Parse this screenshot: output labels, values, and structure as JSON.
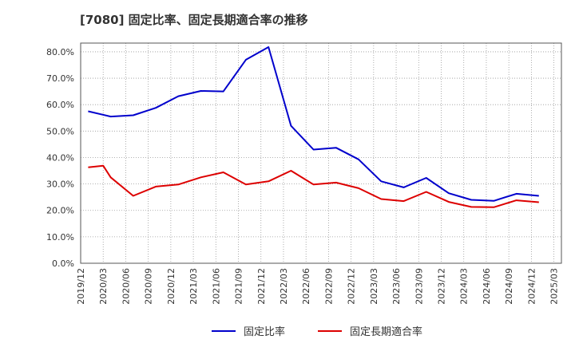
{
  "chart_data": {
    "type": "line",
    "title": "[7080]  固定比率、固定長期適合率の推移",
    "xlabel": "",
    "ylabel": "",
    "ylim": [
      0,
      0.833
    ],
    "y_ticks": [
      "0.0%",
      "10.0%",
      "20.0%",
      "30.0%",
      "40.0%",
      "50.0%",
      "60.0%",
      "70.0%",
      "80.0%"
    ],
    "x_ticks": [
      "2019/12",
      "2020/03",
      "2020/06",
      "2020/09",
      "2020/12",
      "2021/03",
      "2021/06",
      "2021/09",
      "2021/12",
      "2022/03",
      "2022/06",
      "2022/09",
      "2022/12",
      "2023/03",
      "2023/06",
      "2023/09",
      "2023/12",
      "2024/03",
      "2024/06",
      "2024/09",
      "2024/12",
      "2025/03"
    ],
    "x_start": "2019/12",
    "x_step_months": 1,
    "x_count": 64,
    "legend_position": "bottom",
    "series": [
      {
        "name": "固定比率",
        "color": "#0000cc",
        "points": [
          [
            1,
            0.575
          ],
          [
            4,
            0.555
          ],
          [
            7,
            0.56
          ],
          [
            10,
            0.588
          ],
          [
            13,
            0.632
          ],
          [
            16,
            0.652
          ],
          [
            19,
            0.65
          ],
          [
            22,
            0.77
          ],
          [
            25,
            0.818
          ],
          [
            28,
            0.52
          ],
          [
            31,
            0.43
          ],
          [
            34,
            0.437
          ],
          [
            37,
            0.393
          ],
          [
            40,
            0.31
          ],
          [
            43,
            0.287
          ],
          [
            46,
            0.323
          ],
          [
            49,
            0.265
          ],
          [
            52,
            0.24
          ],
          [
            55,
            0.236
          ],
          [
            58,
            0.263
          ],
          [
            61,
            0.255
          ]
        ]
      },
      {
        "name": "固定長期適合率",
        "color": "#dd0000",
        "points": [
          [
            1,
            0.363
          ],
          [
            3,
            0.369
          ],
          [
            4,
            0.325
          ],
          [
            7,
            0.255
          ],
          [
            10,
            0.29
          ],
          [
            13,
            0.298
          ],
          [
            16,
            0.325
          ],
          [
            19,
            0.344
          ],
          [
            22,
            0.298
          ],
          [
            25,
            0.31
          ],
          [
            28,
            0.35
          ],
          [
            31,
            0.298
          ],
          [
            34,
            0.305
          ],
          [
            37,
            0.284
          ],
          [
            40,
            0.243
          ],
          [
            43,
            0.235
          ],
          [
            46,
            0.27
          ],
          [
            49,
            0.232
          ],
          [
            52,
            0.213
          ],
          [
            55,
            0.212
          ],
          [
            58,
            0.238
          ],
          [
            61,
            0.231
          ]
        ]
      }
    ]
  }
}
